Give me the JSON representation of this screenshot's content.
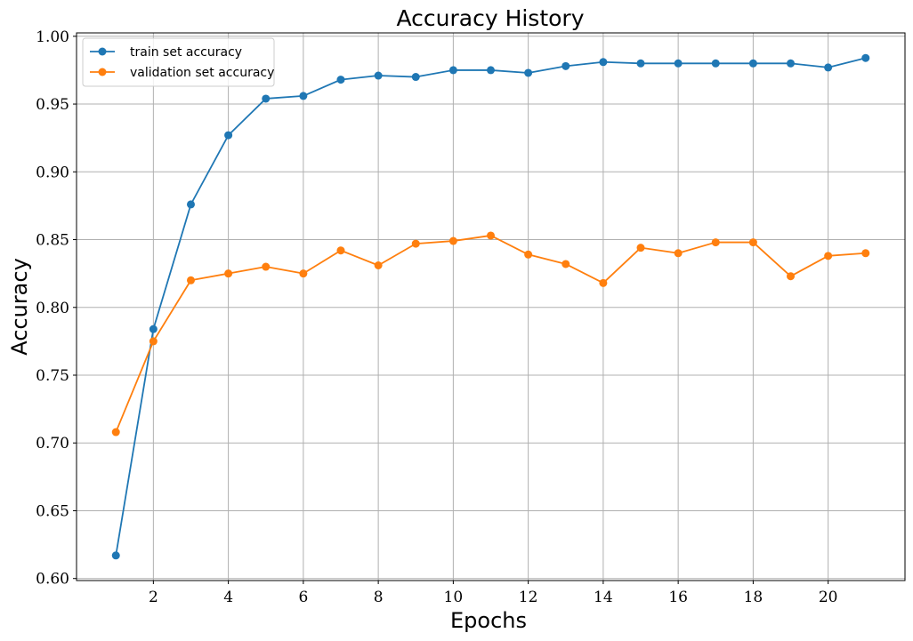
{
  "chart_data": {
    "type": "line",
    "title": "Accuracy History",
    "xlabel": "Epochs",
    "ylabel": "Accuracy",
    "x": [
      1,
      2,
      3,
      4,
      5,
      6,
      7,
      8,
      9,
      10,
      11,
      12,
      13,
      14,
      15,
      16,
      17,
      18,
      19,
      20,
      21
    ],
    "series": [
      {
        "name": "train set accuracy",
        "color": "#1f77b4",
        "marker": "circle",
        "values": [
          0.617,
          0.784,
          0.876,
          0.927,
          0.954,
          0.956,
          0.968,
          0.971,
          0.97,
          0.975,
          0.975,
          0.973,
          0.978,
          0.981,
          0.98,
          0.98,
          0.98,
          0.98,
          0.98,
          0.977,
          0.984
        ]
      },
      {
        "name": "validation set accuracy",
        "color": "#ff7f0e",
        "marker": "circle",
        "values": [
          0.708,
          0.775,
          0.82,
          0.825,
          0.83,
          0.825,
          0.842,
          0.831,
          0.847,
          0.849,
          0.853,
          0.839,
          0.832,
          0.818,
          0.844,
          0.84,
          0.848,
          0.848,
          0.823,
          0.838,
          0.84
        ]
      }
    ],
    "xlim": [
      -0.05,
      22.05
    ],
    "ylim": [
      0.5985,
      1.0025
    ],
    "xticks": [
      2,
      4,
      6,
      8,
      10,
      12,
      14,
      16,
      18,
      20
    ],
    "yticks": [
      0.6,
      0.65,
      0.7,
      0.75,
      0.8,
      0.85,
      0.9,
      0.95,
      1.0
    ],
    "ytick_labels": [
      "0.60",
      "0.65",
      "0.70",
      "0.75",
      "0.80",
      "0.85",
      "0.90",
      "0.95",
      "1.00"
    ],
    "grid": true,
    "grid_color": "#b0b0b0",
    "legend_position": "upper-left"
  }
}
